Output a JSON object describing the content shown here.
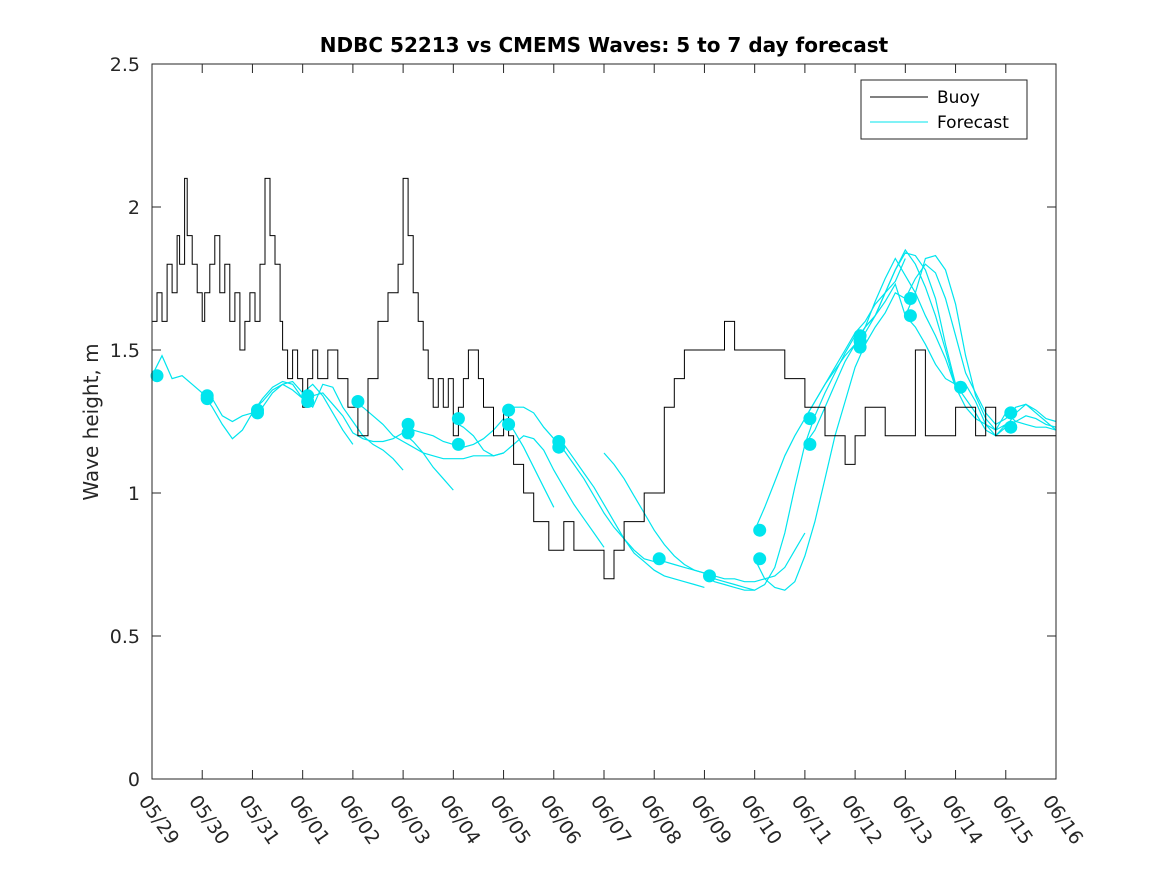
{
  "chart_data": {
    "type": "line",
    "title": "NDBC 52213 vs CMEMS Waves: 5 to 7 day forecast",
    "xlabel": "",
    "ylabel": "Wave height, m",
    "xlim": [
      0,
      18
    ],
    "ylim": [
      0,
      2.5
    ],
    "x_tick_labels": [
      "05/29",
      "05/30",
      "05/31",
      "06/01",
      "06/02",
      "06/03",
      "06/04",
      "06/05",
      "06/06",
      "06/07",
      "06/08",
      "06/09",
      "06/10",
      "06/11",
      "06/12",
      "06/13",
      "06/14",
      "06/15",
      "06/16"
    ],
    "y_ticks": [
      0,
      0.5,
      1,
      1.5,
      2,
      2.5
    ],
    "y_tick_labels": [
      "0",
      "0.5",
      "1",
      "1.5",
      "2",
      "2.5"
    ],
    "grid": false,
    "legend": {
      "position": "top-right",
      "entries": [
        {
          "label": "Buoy",
          "color": "#000000"
        },
        {
          "label": "Forecast",
          "color": "#00E5EE"
        }
      ]
    },
    "series": [
      {
        "name": "Buoy",
        "color": "#000000",
        "style": "step",
        "x": [
          0.0,
          0.1,
          0.2,
          0.3,
          0.4,
          0.5,
          0.55,
          0.65,
          0.7,
          0.8,
          0.9,
          1.0,
          1.05,
          1.15,
          1.25,
          1.35,
          1.45,
          1.55,
          1.65,
          1.75,
          1.85,
          1.95,
          2.05,
          2.15,
          2.25,
          2.35,
          2.45,
          2.55,
          2.6,
          2.7,
          2.8,
          2.9,
          3.0,
          3.1,
          3.2,
          3.3,
          3.5,
          3.7,
          3.9,
          4.1,
          4.3,
          4.5,
          4.7,
          4.9,
          5.0,
          5.1,
          5.2,
          5.3,
          5.4,
          5.5,
          5.6,
          5.7,
          5.8,
          5.9,
          6.0,
          6.1,
          6.2,
          6.3,
          6.4,
          6.5,
          6.6,
          6.7,
          6.8,
          6.9,
          7.0,
          7.1,
          7.2,
          7.3,
          7.4,
          7.5,
          7.6,
          7.7,
          7.8,
          7.9,
          8.0,
          8.2,
          8.4,
          8.6,
          8.8,
          9.0,
          9.2,
          9.4,
          9.6,
          9.8,
          10.0,
          10.2,
          10.4,
          10.6,
          10.8,
          11.0,
          11.2,
          11.4,
          11.6,
          11.8,
          12.0,
          12.2,
          12.4,
          12.6,
          12.8,
          13.0,
          13.2,
          13.4,
          13.6,
          13.8,
          14.0,
          14.2,
          14.4,
          14.6,
          14.8,
          15.0,
          15.2,
          15.4,
          15.6,
          15.8,
          16.0,
          16.2,
          16.4,
          16.6,
          16.8,
          17.0,
          17.2,
          17.4,
          17.6,
          17.8,
          18.0
        ],
        "y": [
          1.6,
          1.7,
          1.6,
          1.8,
          1.7,
          1.9,
          1.8,
          2.1,
          1.9,
          1.8,
          1.7,
          1.6,
          1.7,
          1.8,
          1.9,
          1.7,
          1.8,
          1.6,
          1.7,
          1.5,
          1.6,
          1.7,
          1.6,
          1.8,
          2.1,
          1.9,
          1.8,
          1.6,
          1.5,
          1.4,
          1.5,
          1.4,
          1.3,
          1.4,
          1.5,
          1.4,
          1.5,
          1.4,
          1.3,
          1.2,
          1.4,
          1.6,
          1.7,
          1.8,
          2.1,
          1.9,
          1.7,
          1.6,
          1.5,
          1.4,
          1.3,
          1.4,
          1.3,
          1.4,
          1.2,
          1.3,
          1.4,
          1.5,
          1.5,
          1.4,
          1.3,
          1.3,
          1.2,
          1.2,
          1.3,
          1.2,
          1.1,
          1.1,
          1.0,
          1.0,
          0.9,
          0.9,
          0.9,
          0.8,
          0.8,
          0.9,
          0.8,
          0.8,
          0.8,
          0.7,
          0.8,
          0.9,
          0.9,
          1.0,
          1.0,
          1.3,
          1.4,
          1.5,
          1.5,
          1.5,
          1.5,
          1.6,
          1.5,
          1.5,
          1.5,
          1.5,
          1.5,
          1.4,
          1.4,
          1.3,
          1.3,
          1.2,
          1.2,
          1.1,
          1.2,
          1.3,
          1.3,
          1.2,
          1.2,
          1.2,
          1.5,
          1.2,
          1.2,
          1.2,
          1.3,
          1.3,
          1.2,
          1.3,
          1.2,
          1.2,
          1.2,
          1.2,
          1.2,
          1.2,
          1.2
        ]
      },
      {
        "name": "Forecast",
        "color": "#00E5EE",
        "x": [
          0.0,
          0.5,
          1.0,
          1.5,
          2.0,
          2.5,
          3.0,
          3.5,
          4.0,
          4.5,
          5.0,
          5.5,
          6.0,
          6.5,
          7.0,
          7.5,
          8.0,
          8.5,
          9.0,
          9.5,
          10.0,
          10.5,
          11.0,
          11.5,
          12.0,
          12.5,
          13.0,
          13.5,
          14.0,
          14.5,
          15.0,
          15.5,
          16.0,
          16.5,
          17.0,
          17.5,
          18.0
        ],
        "y": [
          1.41,
          1.42,
          1.35,
          1.25,
          1.28,
          1.38,
          1.33,
          1.38,
          1.3,
          1.24,
          1.21,
          1.17,
          1.22,
          1.24,
          1.26,
          1.28,
          1.17,
          1.05,
          0.94,
          0.8,
          0.74,
          0.7,
          0.69,
          0.7,
          0.81,
          1.04,
          1.25,
          1.45,
          1.56,
          1.7,
          1.74,
          1.67,
          1.38,
          1.24,
          1.24,
          1.25,
          1.24
        ]
      }
    ],
    "forecast_traces": [
      {
        "x": [
          0.0,
          0.2,
          0.4,
          0.6,
          0.8,
          1.0,
          1.2,
          1.4,
          1.6,
          1.8,
          2.0,
          2.2,
          2.4,
          2.6,
          2.8,
          3.0
        ],
        "y": [
          1.41,
          1.48,
          1.4,
          1.41,
          1.38,
          1.35,
          1.3,
          1.24,
          1.19,
          1.22,
          1.28,
          1.33,
          1.37,
          1.39,
          1.38,
          1.33
        ]
      },
      {
        "x": [
          1.0,
          1.2,
          1.4,
          1.6,
          1.8,
          2.0,
          2.2,
          2.4,
          2.6,
          2.8,
          3.0,
          3.2,
          3.4,
          3.6,
          3.8,
          4.0
        ],
        "y": [
          1.34,
          1.33,
          1.27,
          1.25,
          1.27,
          1.28,
          1.3,
          1.35,
          1.38,
          1.39,
          1.35,
          1.38,
          1.34,
          1.28,
          1.22,
          1.17
        ]
      },
      {
        "x": [
          2.0,
          2.2,
          2.4,
          2.6,
          2.8,
          3.0,
          3.2,
          3.4,
          3.6,
          3.8,
          4.0,
          4.2,
          4.4,
          4.6,
          4.8,
          5.0
        ],
        "y": [
          1.29,
          1.32,
          1.36,
          1.38,
          1.36,
          1.33,
          1.3,
          1.38,
          1.37,
          1.3,
          1.25,
          1.2,
          1.17,
          1.15,
          1.12,
          1.08
        ]
      },
      {
        "x": [
          3.0,
          3.2,
          3.4,
          3.6,
          3.8,
          4.0,
          4.2,
          4.4,
          4.6,
          4.8,
          5.0,
          5.2,
          5.4,
          5.6,
          5.8,
          6.0
        ],
        "y": [
          1.32,
          1.34,
          1.35,
          1.31,
          1.27,
          1.21,
          1.19,
          1.18,
          1.18,
          1.19,
          1.21,
          1.18,
          1.14,
          1.09,
          1.05,
          1.01
        ]
      },
      {
        "x": [
          4.0,
          4.2,
          4.4,
          4.6,
          4.8,
          5.0,
          5.2,
          5.4,
          5.6,
          5.8,
          6.0,
          6.2,
          6.4,
          6.6,
          6.8,
          7.0
        ],
        "y": [
          1.32,
          1.3,
          1.27,
          1.24,
          1.2,
          1.18,
          1.16,
          1.14,
          1.13,
          1.12,
          1.12,
          1.12,
          1.13,
          1.13,
          1.13,
          1.14
        ]
      },
      {
        "x": [
          5.0,
          5.2,
          5.4,
          5.6,
          5.8,
          6.0,
          6.2,
          6.4,
          6.6,
          6.8,
          7.0,
          7.2,
          7.4,
          7.6,
          7.8,
          8.0
        ],
        "y": [
          1.21,
          1.22,
          1.21,
          1.2,
          1.18,
          1.17,
          1.16,
          1.17,
          1.19,
          1.22,
          1.26,
          1.22,
          1.16,
          1.09,
          1.02,
          0.95
        ]
      },
      {
        "x": [
          6.0,
          6.2,
          6.4,
          6.6,
          6.8,
          7.0,
          7.2,
          7.4,
          7.6,
          7.8,
          8.0,
          8.2,
          8.4,
          8.6,
          8.8,
          9.0
        ],
        "y": [
          1.25,
          1.23,
          1.2,
          1.15,
          1.13,
          1.14,
          1.17,
          1.2,
          1.19,
          1.15,
          1.08,
          1.02,
          0.96,
          0.91,
          0.86,
          0.81
        ]
      },
      {
        "x": [
          7.0,
          7.2,
          7.4,
          7.6,
          7.8,
          8.0,
          8.2,
          8.4,
          8.6,
          8.8,
          9.0,
          9.2,
          9.4,
          9.6,
          9.8,
          10.0
        ],
        "y": [
          1.29,
          1.3,
          1.3,
          1.28,
          1.23,
          1.19,
          1.15,
          1.1,
          1.05,
          0.99,
          0.93,
          0.88,
          0.84,
          0.8,
          0.77,
          0.76
        ]
      },
      {
        "x": [
          8.0,
          8.2,
          8.4,
          8.6,
          8.8,
          9.0,
          9.2,
          9.4,
          9.6,
          9.8,
          10.0,
          10.2,
          10.4,
          10.6,
          10.8,
          11.0
        ],
        "y": [
          1.16,
          1.17,
          1.12,
          1.07,
          1.02,
          0.96,
          0.9,
          0.84,
          0.79,
          0.76,
          0.73,
          0.71,
          0.7,
          0.69,
          0.68,
          0.67
        ]
      },
      {
        "x": [
          9.0,
          9.2,
          9.4,
          9.6,
          9.8,
          10.0,
          10.2,
          10.4,
          10.6,
          10.8,
          11.0,
          11.2,
          11.4,
          11.6,
          11.8,
          12.0
        ],
        "y": [
          1.14,
          1.1,
          1.05,
          0.99,
          0.93,
          0.87,
          0.82,
          0.78,
          0.75,
          0.73,
          0.72,
          0.7,
          0.69,
          0.68,
          0.67,
          0.66
        ]
      },
      {
        "x": [
          10.0,
          10.2,
          10.4,
          10.6,
          10.8,
          11.0,
          11.2,
          11.4,
          11.6,
          11.8,
          12.0,
          12.2,
          12.4,
          12.6,
          12.8,
          13.0
        ],
        "y": [
          0.78,
          0.76,
          0.75,
          0.74,
          0.73,
          0.72,
          0.71,
          0.7,
          0.7,
          0.69,
          0.69,
          0.7,
          0.71,
          0.74,
          0.8,
          0.86
        ]
      },
      {
        "x": [
          11.0,
          11.2,
          11.4,
          11.6,
          11.8,
          12.0,
          12.2,
          12.4,
          12.6,
          12.8,
          13.0,
          13.2,
          13.4,
          13.6,
          13.8,
          14.0
        ],
        "y": [
          0.71,
          0.69,
          0.68,
          0.67,
          0.66,
          0.66,
          0.68,
          0.74,
          0.86,
          1.02,
          1.17,
          1.27,
          1.35,
          1.42,
          1.49,
          1.55
        ]
      },
      {
        "x": [
          12.0,
          12.2,
          12.4,
          12.6,
          12.8,
          13.0,
          13.2,
          13.4,
          13.6,
          13.8,
          14.0,
          14.2,
          14.4,
          14.6,
          14.8,
          15.0
        ],
        "y": [
          0.77,
          0.7,
          0.67,
          0.66,
          0.69,
          0.78,
          0.9,
          1.05,
          1.2,
          1.32,
          1.44,
          1.52,
          1.58,
          1.63,
          1.7,
          1.68
        ]
      },
      {
        "x": [
          12.0,
          12.2,
          12.4,
          12.6,
          12.8,
          13.0,
          13.2,
          13.4,
          13.6,
          13.8,
          14.0,
          14.2,
          14.4,
          14.6,
          14.8,
          15.0
        ],
        "y": [
          0.87,
          0.95,
          1.04,
          1.13,
          1.2,
          1.26,
          1.32,
          1.38,
          1.44,
          1.5,
          1.56,
          1.6,
          1.66,
          1.7,
          1.74,
          1.82
        ]
      },
      {
        "x": [
          13.0,
          13.2,
          13.4,
          13.6,
          13.8,
          14.0,
          14.2,
          14.4,
          14.6,
          14.8,
          15.0,
          15.2,
          15.4,
          15.6,
          15.8,
          16.0
        ],
        "y": [
          1.17,
          1.22,
          1.3,
          1.38,
          1.46,
          1.52,
          1.58,
          1.62,
          1.7,
          1.78,
          1.84,
          1.83,
          1.78,
          1.68,
          1.52,
          1.38
        ]
      },
      {
        "x": [
          13.0,
          13.2,
          13.4,
          13.6,
          13.8,
          14.0,
          14.2,
          14.4,
          14.6,
          14.8,
          15.0,
          15.2,
          15.4,
          15.6,
          15.8,
          16.0
        ],
        "y": [
          1.26,
          1.32,
          1.38,
          1.43,
          1.48,
          1.52,
          1.58,
          1.67,
          1.75,
          1.82,
          1.76,
          1.7,
          1.62,
          1.55,
          1.47,
          1.37
        ]
      },
      {
        "x": [
          14.0,
          14.2,
          14.4,
          14.6,
          14.8,
          15.0,
          15.2,
          15.4,
          15.6,
          15.8,
          16.0,
          16.2,
          16.4,
          16.6,
          16.8,
          17.0
        ],
        "y": [
          1.53,
          1.58,
          1.62,
          1.7,
          1.78,
          1.85,
          1.8,
          1.72,
          1.62,
          1.5,
          1.37,
          1.3,
          1.26,
          1.24,
          1.22,
          1.28
        ]
      },
      {
        "x": [
          14.0,
          14.2,
          14.4,
          14.6,
          14.8,
          15.0,
          15.2,
          15.4,
          15.6,
          15.8,
          16.0,
          16.2,
          16.4,
          16.6,
          16.8,
          17.0
        ],
        "y": [
          1.51,
          1.56,
          1.62,
          1.67,
          1.73,
          1.62,
          1.58,
          1.52,
          1.45,
          1.4,
          1.38,
          1.33,
          1.28,
          1.22,
          1.2,
          1.24
        ]
      },
      {
        "x": [
          15.0,
          15.2,
          15.4,
          15.6,
          15.8,
          16.0,
          16.2,
          16.4,
          16.6,
          16.8,
          17.0,
          17.2,
          17.4,
          17.6,
          17.8,
          18.0
        ],
        "y": [
          1.68,
          1.75,
          1.8,
          1.77,
          1.68,
          1.55,
          1.42,
          1.35,
          1.28,
          1.24,
          1.26,
          1.3,
          1.31,
          1.29,
          1.26,
          1.25
        ]
      },
      {
        "x": [
          15.0,
          15.2,
          15.4,
          15.6,
          15.8,
          16.0,
          16.2,
          16.4,
          16.6,
          16.8,
          17.0,
          17.2,
          17.4,
          17.6,
          17.8,
          18.0
        ],
        "y": [
          1.62,
          1.7,
          1.82,
          1.83,
          1.78,
          1.66,
          1.48,
          1.34,
          1.26,
          1.22,
          1.24,
          1.25,
          1.27,
          1.26,
          1.24,
          1.23
        ]
      },
      {
        "x": [
          16.0,
          16.2,
          16.4,
          16.6,
          16.8,
          17.0,
          17.2,
          17.4,
          17.6,
          17.8,
          18.0
        ],
        "y": [
          1.37,
          1.38,
          1.32,
          1.24,
          1.2,
          1.23,
          1.28,
          1.31,
          1.28,
          1.25,
          1.22
        ]
      },
      {
        "x": [
          17.0,
          17.2,
          17.4,
          17.6,
          17.8,
          18.0
        ],
        "y": [
          1.28,
          1.25,
          1.24,
          1.23,
          1.23,
          1.22
        ]
      }
    ],
    "forecast_markers": [
      {
        "x": 0.1,
        "y": 1.41
      },
      {
        "x": 1.1,
        "y": 1.34
      },
      {
        "x": 1.1,
        "y": 1.33
      },
      {
        "x": 2.1,
        "y": 1.29
      },
      {
        "x": 2.1,
        "y": 1.28
      },
      {
        "x": 3.1,
        "y": 1.34
      },
      {
        "x": 3.1,
        "y": 1.32
      },
      {
        "x": 4.1,
        "y": 1.32
      },
      {
        "x": 5.1,
        "y": 1.24
      },
      {
        "x": 5.1,
        "y": 1.21
      },
      {
        "x": 6.1,
        "y": 1.26
      },
      {
        "x": 6.1,
        "y": 1.17
      },
      {
        "x": 7.1,
        "y": 1.29
      },
      {
        "x": 7.1,
        "y": 1.24
      },
      {
        "x": 8.1,
        "y": 1.18
      },
      {
        "x": 8.1,
        "y": 1.16
      },
      {
        "x": 10.1,
        "y": 0.77
      },
      {
        "x": 11.1,
        "y": 0.71
      },
      {
        "x": 12.1,
        "y": 0.87
      },
      {
        "x": 12.1,
        "y": 0.77
      },
      {
        "x": 13.1,
        "y": 1.26
      },
      {
        "x": 13.1,
        "y": 1.17
      },
      {
        "x": 14.1,
        "y": 1.55
      },
      {
        "x": 14.1,
        "y": 1.53
      },
      {
        "x": 14.1,
        "y": 1.51
      },
      {
        "x": 15.1,
        "y": 1.68
      },
      {
        "x": 15.1,
        "y": 1.62
      },
      {
        "x": 16.1,
        "y": 1.37
      },
      {
        "x": 17.1,
        "y": 1.28
      },
      {
        "x": 17.1,
        "y": 1.23
      }
    ]
  }
}
